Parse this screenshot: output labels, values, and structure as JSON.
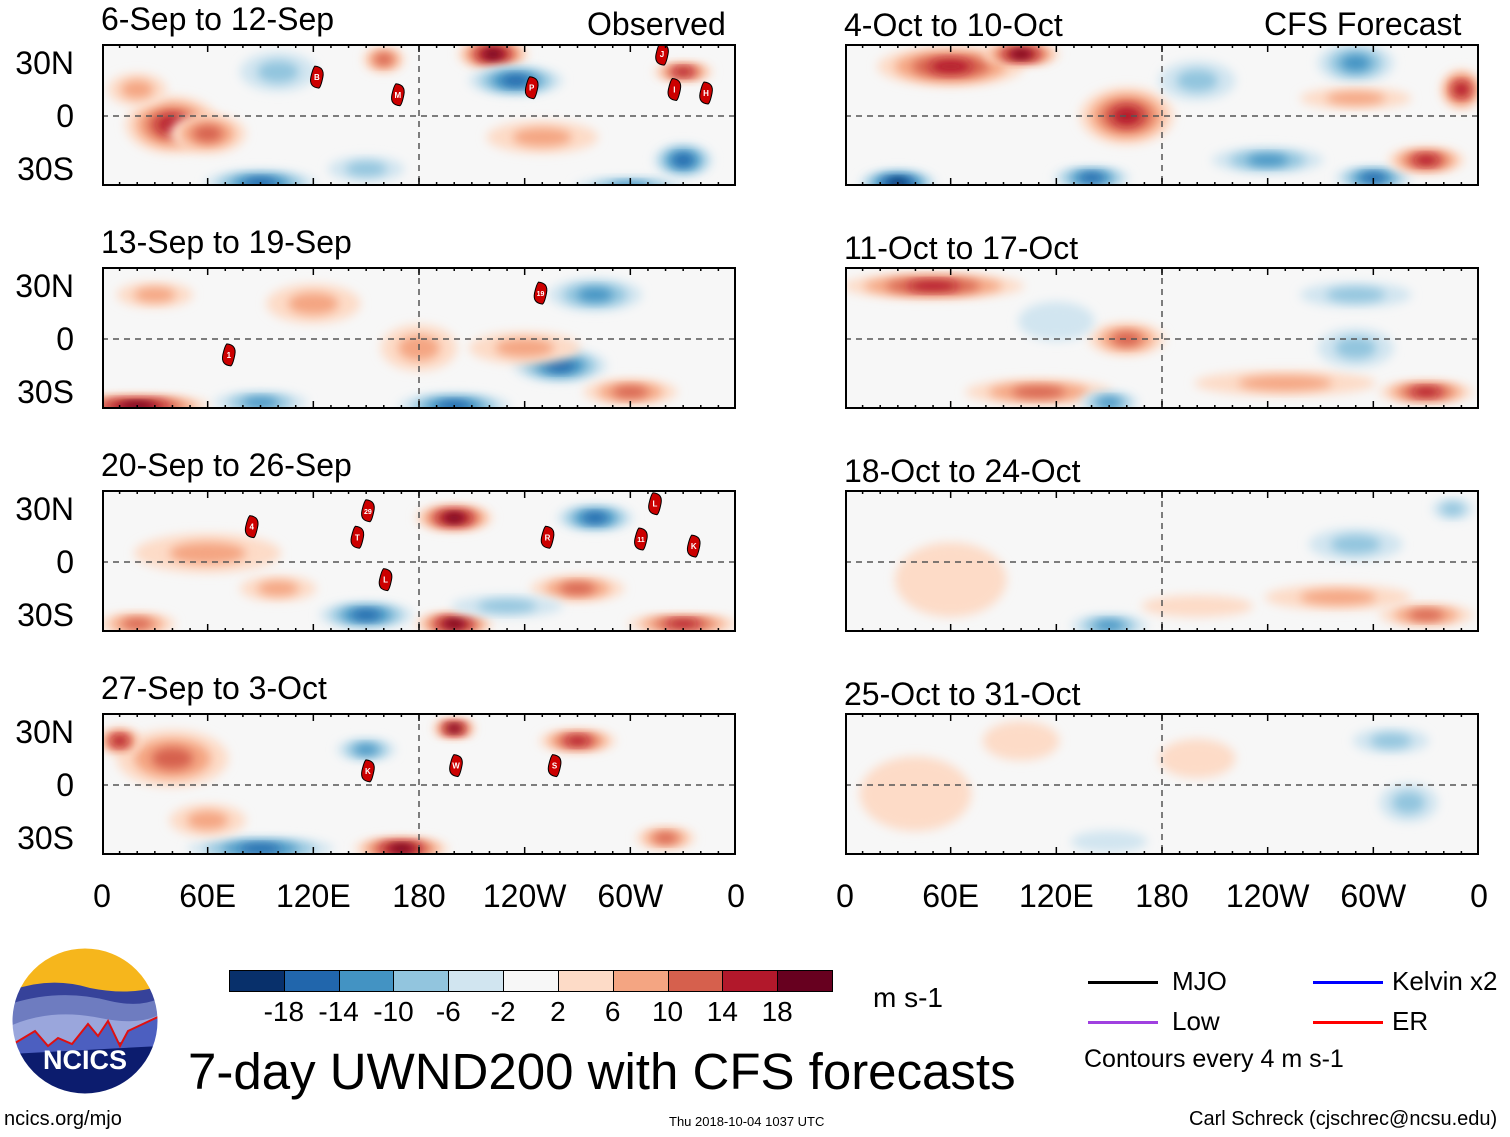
{
  "header": {
    "observed_label": "Observed",
    "forecast_label": "CFS Forecast"
  },
  "axes": {
    "y_ticks": [
      "30N",
      "0",
      "30S"
    ],
    "x_ticks": [
      "0",
      "60E",
      "120E",
      "180",
      "120W",
      "60W",
      "0"
    ]
  },
  "colorbar": {
    "colors": [
      "#08306b",
      "#2166ac",
      "#4393c3",
      "#92c5de",
      "#d1e5f0",
      "#f7f7f7",
      "#fddbc7",
      "#f4a582",
      "#d6604d",
      "#b2182b",
      "#67001f"
    ],
    "labels": [
      "-18",
      "-14",
      "-10",
      "-6",
      "-2",
      "2",
      "6",
      "10",
      "14",
      "18"
    ],
    "units": "m s-1"
  },
  "legend": {
    "items": [
      {
        "label": "MJO",
        "color": "#000000"
      },
      {
        "label": "Kelvin x2",
        "color": "#0000ff"
      },
      {
        "label": "Low",
        "color": "#a040e0"
      },
      {
        "label": "ER",
        "color": "#ff0000"
      }
    ],
    "contours_note": "Contours every 4 m s-1"
  },
  "title": "7-day UWND200 with CFS forecasts",
  "logo": {
    "text": "NCICS"
  },
  "footer": {
    "left": "ncics.org/mjo",
    "center": "Thu 2018-10-04 1037 UTC",
    "right": "Carl Schreck (cjschrec@ncsu.edu)"
  },
  "chart_data": {
    "type": "heatmap",
    "variable": "200-hPa zonal wind anomaly",
    "units": "m s-1",
    "x_range_lon": [
      0,
      360
    ],
    "y_range_lat": [
      -40,
      40
    ],
    "levels": [
      -18,
      -14,
      -10,
      -6,
      -2,
      2,
      6,
      10,
      14,
      18
    ],
    "panels": [
      {
        "title": "6-Sep to 12-Sep",
        "kind": "observed",
        "anomalies": [
          [
            40,
            -5,
            25,
            15,
            14
          ],
          [
            60,
            -10,
            20,
            10,
            10
          ],
          [
            90,
            -38,
            30,
            6,
            -14
          ],
          [
            222,
            35,
            18,
            7,
            18
          ],
          [
            235,
            20,
            25,
            7,
            -14
          ],
          [
            330,
            -25,
            15,
            8,
            -14
          ],
          [
            250,
            -12,
            30,
            8,
            8
          ],
          [
            100,
            25,
            20,
            10,
            -6
          ],
          [
            20,
            15,
            15,
            8,
            6
          ],
          [
            160,
            32,
            10,
            6,
            10
          ],
          [
            300,
            -40,
            30,
            4,
            -10
          ],
          [
            330,
            25,
            15,
            4,
            14
          ],
          [
            150,
            -30,
            20,
            6,
            -6
          ]
        ],
        "storms": [
          {
            "label": "B",
            "lon": 122,
            "lat": 22
          },
          {
            "label": "M",
            "lon": 168,
            "lat": 12
          },
          {
            "label": "P",
            "lon": 244,
            "lat": 16
          },
          {
            "label": "J",
            "lon": 318,
            "lat": 35
          },
          {
            "label": "I",
            "lon": 325,
            "lat": 15
          },
          {
            "label": "H",
            "lon": 343,
            "lat": 13
          }
        ]
      },
      {
        "title": "13-Sep to 19-Sep",
        "kind": "observed",
        "anomalies": [
          [
            20,
            -38,
            40,
            5,
            18
          ],
          [
            90,
            -36,
            25,
            5,
            -10
          ],
          [
            200,
            -38,
            30,
            6,
            -14
          ],
          [
            260,
            -15,
            25,
            8,
            -14
          ],
          [
            240,
            -5,
            30,
            8,
            8
          ],
          [
            180,
            -5,
            20,
            12,
            6
          ],
          [
            300,
            -30,
            25,
            6,
            10
          ],
          [
            280,
            25,
            25,
            8,
            -10
          ],
          [
            120,
            20,
            25,
            10,
            8
          ],
          [
            30,
            25,
            20,
            6,
            6
          ]
        ],
        "storms": [
          {
            "label": "19",
            "lon": 249,
            "lat": 26
          },
          {
            "label": "1",
            "lon": 72,
            "lat": -9
          }
        ]
      },
      {
        "title": "20-Sep to 26-Sep",
        "kind": "observed",
        "anomalies": [
          [
            150,
            -30,
            25,
            6,
            -14
          ],
          [
            200,
            -35,
            20,
            5,
            18
          ],
          [
            200,
            25,
            20,
            6,
            18
          ],
          [
            270,
            -15,
            25,
            6,
            10
          ],
          [
            280,
            25,
            20,
            6,
            -14
          ],
          [
            60,
            5,
            40,
            10,
            6
          ],
          [
            20,
            -35,
            20,
            5,
            10
          ],
          [
            330,
            -35,
            30,
            4,
            14
          ],
          [
            100,
            -15,
            20,
            6,
            8
          ],
          [
            230,
            -25,
            30,
            5,
            -6
          ]
        ],
        "storms": [
          {
            "label": "4",
            "lon": 85,
            "lat": 20
          },
          {
            "label": "29",
            "lon": 151,
            "lat": 29
          },
          {
            "label": "T",
            "lon": 145,
            "lat": 14
          },
          {
            "label": "L",
            "lon": 161,
            "lat": -10
          },
          {
            "label": "R",
            "lon": 253,
            "lat": 14
          },
          {
            "label": "L",
            "lon": 314,
            "lat": 33
          },
          {
            "label": "11",
            "lon": 306,
            "lat": 13
          },
          {
            "label": "K",
            "lon": 336,
            "lat": 9
          }
        ]
      },
      {
        "title": "27-Sep to 3-Oct",
        "kind": "observed",
        "anomalies": [
          [
            40,
            15,
            30,
            15,
            10
          ],
          [
            90,
            -36,
            40,
            5,
            -14
          ],
          [
            170,
            -36,
            25,
            5,
            18
          ],
          [
            270,
            25,
            20,
            5,
            14
          ],
          [
            150,
            20,
            15,
            5,
            -10
          ],
          [
            200,
            32,
            10,
            4,
            18
          ],
          [
            320,
            -30,
            15,
            5,
            10
          ],
          [
            10,
            25,
            10,
            6,
            14
          ],
          [
            60,
            -20,
            20,
            8,
            6
          ]
        ],
        "storms": [
          {
            "label": "K",
            "lon": 151,
            "lat": 8
          },
          {
            "label": "W",
            "lon": 201,
            "lat": 11
          },
          {
            "label": "S",
            "lon": 257,
            "lat": 11
          }
        ]
      },
      {
        "title": "4-Oct to 10-Oct",
        "kind": "forecast",
        "anomalies": [
          [
            60,
            28,
            40,
            10,
            14
          ],
          [
            100,
            35,
            20,
            5,
            18
          ],
          [
            160,
            0,
            25,
            15,
            14
          ],
          [
            140,
            -35,
            20,
            5,
            -14
          ],
          [
            30,
            -38,
            20,
            6,
            -18
          ],
          [
            200,
            20,
            20,
            10,
            -6
          ],
          [
            240,
            -25,
            30,
            6,
            -10
          ],
          [
            300,
            -35,
            20,
            5,
            -14
          ],
          [
            330,
            -25,
            20,
            6,
            14
          ],
          [
            290,
            30,
            20,
            10,
            -10
          ],
          [
            290,
            10,
            30,
            5,
            6
          ],
          [
            350,
            15,
            10,
            10,
            14
          ]
        ],
        "storms": []
      },
      {
        "title": "11-Oct to 17-Oct",
        "kind": "forecast",
        "anomalies": [
          [
            50,
            30,
            50,
            6,
            14
          ],
          [
            110,
            -30,
            40,
            6,
            10
          ],
          [
            150,
            -36,
            15,
            5,
            -10
          ],
          [
            160,
            0,
            20,
            8,
            10
          ],
          [
            250,
            -25,
            50,
            6,
            8
          ],
          [
            330,
            -30,
            25,
            5,
            14
          ],
          [
            290,
            -5,
            20,
            10,
            -6
          ],
          [
            290,
            25,
            30,
            6,
            -6
          ],
          [
            120,
            10,
            20,
            10,
            -2
          ]
        ],
        "storms": []
      },
      {
        "title": "18-Oct to 24-Oct",
        "kind": "forecast",
        "anomalies": [
          [
            150,
            -36,
            20,
            5,
            -10
          ],
          [
            280,
            -20,
            40,
            6,
            8
          ],
          [
            330,
            -30,
            25,
            5,
            10
          ],
          [
            290,
            10,
            25,
            8,
            -6
          ],
          [
            345,
            30,
            10,
            5,
            -6
          ],
          [
            60,
            -10,
            30,
            20,
            4
          ],
          [
            200,
            -25,
            30,
            5,
            4
          ]
        ],
        "storms": []
      },
      {
        "title": "25-Oct to 31-Oct",
        "kind": "forecast",
        "anomalies": [
          [
            40,
            -5,
            30,
            20,
            4
          ],
          [
            310,
            25,
            20,
            6,
            -6
          ],
          [
            320,
            -10,
            15,
            10,
            -6
          ],
          [
            150,
            -32,
            20,
            5,
            -4
          ],
          [
            200,
            15,
            20,
            10,
            4
          ],
          [
            100,
            25,
            20,
            10,
            4
          ]
        ],
        "storms": []
      }
    ]
  }
}
